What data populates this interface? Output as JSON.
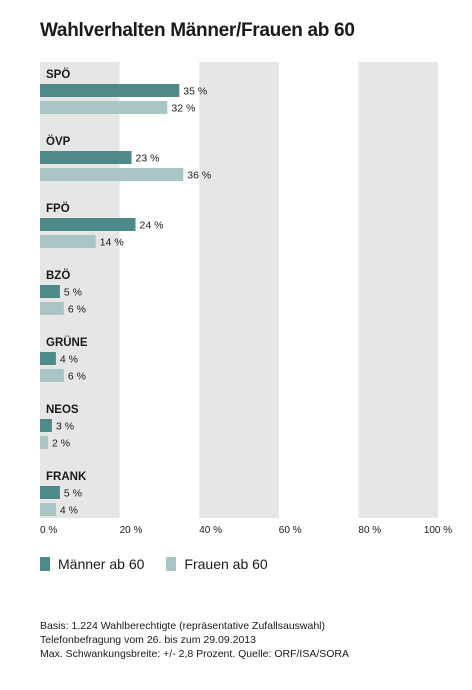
{
  "title": "Wahlverhalten Männer/Frauen ab 60",
  "colors": {
    "men": "#4f8a8b",
    "women": "#a9c6c5",
    "band": "#e6e6e6"
  },
  "chart_data": {
    "type": "bar",
    "orientation": "horizontal",
    "categories": [
      "SPÖ",
      "ÖVP",
      "FPÖ",
      "BZÖ",
      "GRÜNE",
      "NEOS",
      "FRANK"
    ],
    "series": [
      {
        "name": "Männer ab 60",
        "values": [
          35,
          23,
          24,
          5,
          4,
          3,
          5
        ],
        "labels": [
          "35 %",
          "23 %",
          "24 %",
          "5 %",
          "4 %",
          "3 %",
          "5 %"
        ]
      },
      {
        "name": "Frauen ab 60",
        "values": [
          32,
          36,
          14,
          6,
          6,
          2,
          4
        ],
        "labels": [
          "32 %",
          "36 %",
          "14 %",
          "6 %",
          "6 %",
          "2 %",
          "4 %"
        ]
      }
    ],
    "xlim": [
      0,
      100
    ],
    "ticks": [
      0,
      20,
      40,
      60,
      80,
      100
    ],
    "tick_labels": [
      "0 %",
      "20 %",
      "40 %",
      "60 %",
      "80 %",
      "100 %"
    ],
    "legend_position": "bottom-left"
  },
  "legend": [
    {
      "label": "Männer ab 60"
    },
    {
      "label": "Frauen ab 60"
    }
  ],
  "footnote": [
    "Basis: 1.224 Wahlberechtigte (repräsentative Zufallsauswahl)",
    "Telefonbefragung vom 26. bis zum 29.09.2013",
    "Max. Schwankungsbreite: +/- 2,8 Prozent. Quelle: ORF/ISA/SORA"
  ]
}
